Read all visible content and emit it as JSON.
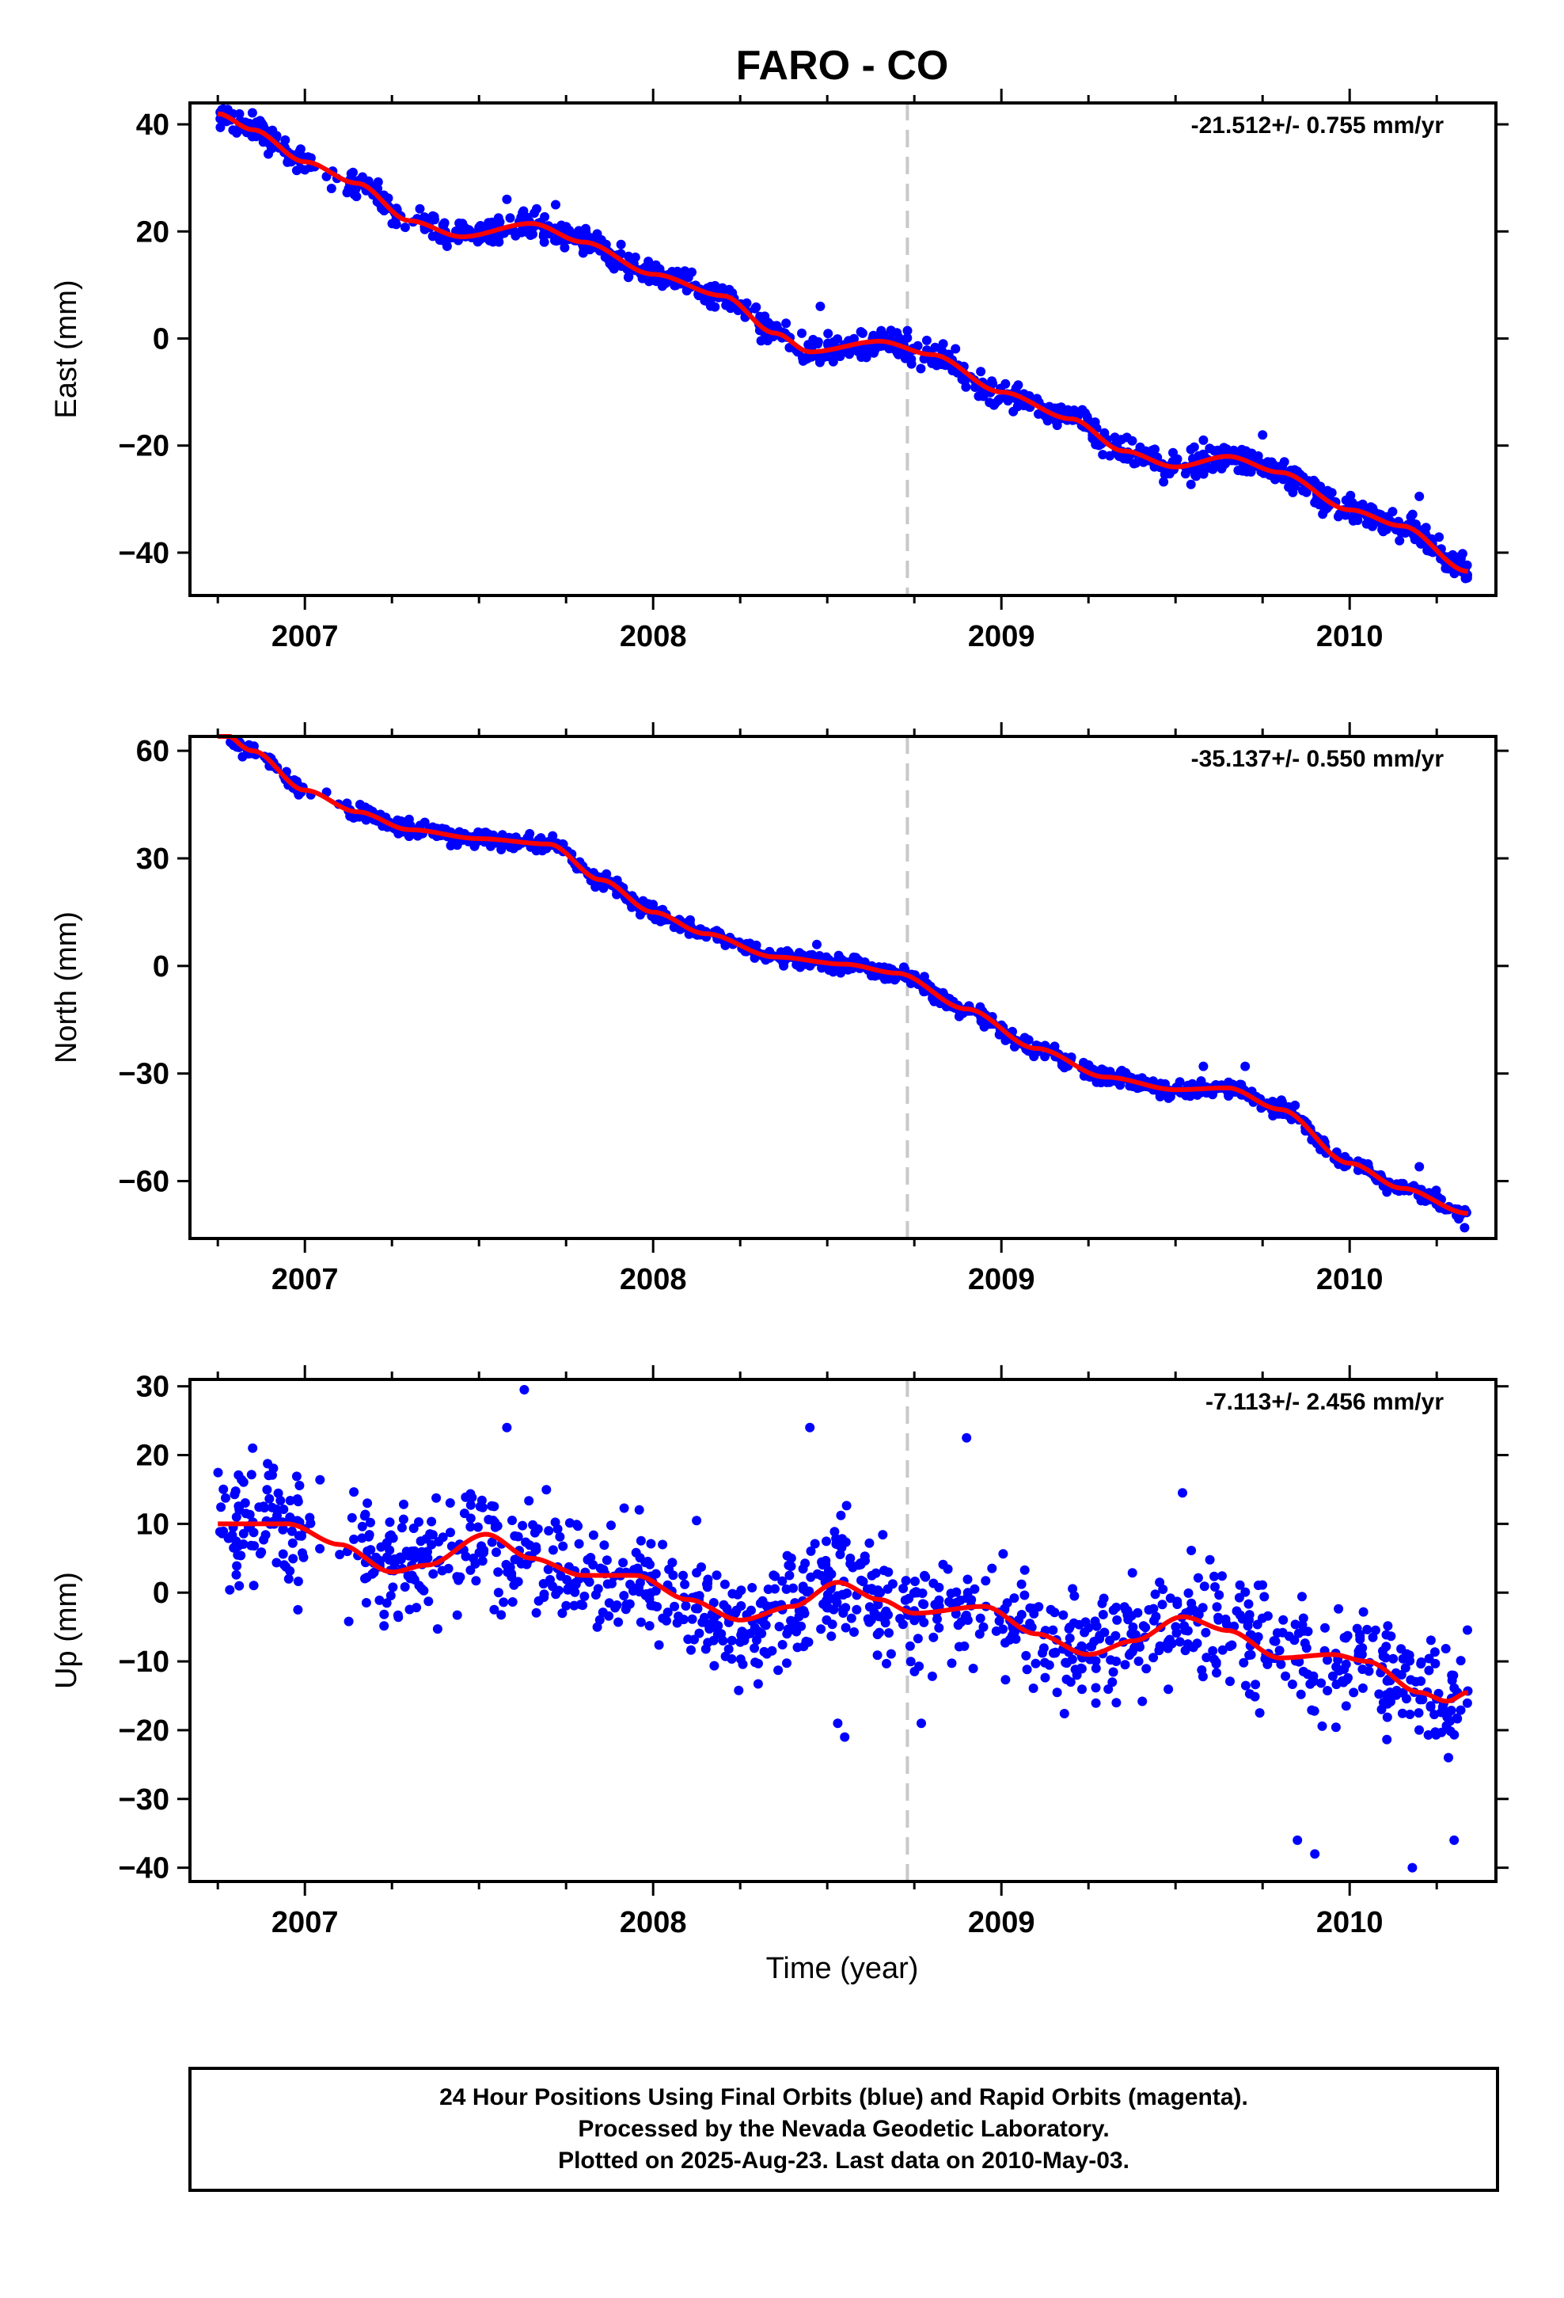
{
  "title": "FARO - CO",
  "xlabel": "Time (year)",
  "footer": {
    "line1": "24 Hour Positions Using Final Orbits (blue) and Rapid Orbits (magenta).",
    "line2": "Processed by the Nevada Geodetic Laboratory.",
    "line3": "Plotted on 2025-Aug-23. Last data on 2010-May-03."
  },
  "colors": {
    "points": "#0000ff",
    "fit": "#ff0000",
    "event_line": "#c8c8c8",
    "axes": "#000000"
  },
  "chart_data": [
    {
      "type": "scatter",
      "component": "east",
      "ylabel": "East (mm)",
      "rate_text": "-21.512+/- 0.755 mm/yr",
      "xlim": [
        2006.67,
        2010.42
      ],
      "ylim": [
        -48,
        44
      ],
      "x_ticks": [
        2007,
        2008,
        2009,
        2010
      ],
      "y_ticks": [
        -40,
        -20,
        0,
        20,
        40
      ],
      "y_tick_labels": [
        "−40",
        "−20",
        "0",
        "20",
        "40"
      ],
      "event_line_x": 2008.73,
      "data_range": [
        2006.75,
        2010.34
      ],
      "fit_knots": [
        [
          2006.75,
          42
        ],
        [
          2006.85,
          39
        ],
        [
          2007.0,
          33
        ],
        [
          2007.15,
          29
        ],
        [
          2007.3,
          22
        ],
        [
          2007.45,
          19
        ],
        [
          2007.65,
          21.5
        ],
        [
          2007.8,
          18
        ],
        [
          2008.0,
          12
        ],
        [
          2008.2,
          8
        ],
        [
          2008.35,
          1
        ],
        [
          2008.45,
          -2.5
        ],
        [
          2008.65,
          -0.5
        ],
        [
          2008.8,
          -3
        ],
        [
          2009.0,
          -10
        ],
        [
          2009.2,
          -15
        ],
        [
          2009.35,
          -21
        ],
        [
          2009.5,
          -24
        ],
        [
          2009.65,
          -22
        ],
        [
          2009.8,
          -25
        ],
        [
          2010.0,
          -32
        ],
        [
          2010.15,
          -35
        ],
        [
          2010.34,
          -43.5
        ]
      ],
      "noise_mm": 1.8,
      "outliers": [
        {
          "x": 2007.58,
          "y": 26
        },
        {
          "x": 2007.72,
          "y": 25
        },
        {
          "x": 2008.48,
          "y": 6
        },
        {
          "x": 2009.58,
          "y": -19
        },
        {
          "x": 2009.75,
          "y": -18
        },
        {
          "x": 2010.2,
          "y": -29.5
        }
      ]
    },
    {
      "type": "scatter",
      "component": "north",
      "ylabel": "North (mm)",
      "rate_text": "-35.137+/- 0.550 mm/yr",
      "xlim": [
        2006.67,
        2010.42
      ],
      "ylim": [
        -76,
        64
      ],
      "x_ticks": [
        2007,
        2008,
        2009,
        2010
      ],
      "y_ticks": [
        -60,
        -30,
        0,
        30,
        60
      ],
      "y_tick_labels": [
        "−60",
        "−30",
        "0",
        "30",
        "60"
      ],
      "event_line_x": 2008.73,
      "data_range": [
        2006.75,
        2010.34
      ],
      "fit_knots": [
        [
          2006.75,
          66
        ],
        [
          2006.85,
          60
        ],
        [
          2007.0,
          49
        ],
        [
          2007.15,
          43
        ],
        [
          2007.3,
          38
        ],
        [
          2007.5,
          35.5
        ],
        [
          2007.7,
          34
        ],
        [
          2007.85,
          24
        ],
        [
          2008.0,
          15
        ],
        [
          2008.15,
          9
        ],
        [
          2008.35,
          2.5
        ],
        [
          2008.55,
          0.5
        ],
        [
          2008.7,
          -2
        ],
        [
          2008.9,
          -12
        ],
        [
          2009.1,
          -23
        ],
        [
          2009.3,
          -31
        ],
        [
          2009.5,
          -34.5
        ],
        [
          2009.65,
          -34
        ],
        [
          2009.8,
          -40
        ],
        [
          2010.0,
          -55
        ],
        [
          2010.15,
          -62
        ],
        [
          2010.34,
          -69
        ]
      ],
      "noise_mm": 1.5,
      "outliers": [
        {
          "x": 2009.58,
          "y": -28
        },
        {
          "x": 2009.7,
          "y": -28
        },
        {
          "x": 2010.2,
          "y": -56
        },
        {
          "x": 2010.33,
          "y": -73
        },
        {
          "x": 2008.47,
          "y": 6
        }
      ]
    },
    {
      "type": "scatter",
      "component": "up",
      "ylabel": "Up (mm)",
      "rate_text": "-7.113+/- 2.456 mm/yr",
      "xlim": [
        2006.67,
        2010.42
      ],
      "ylim": [
        -42,
        31
      ],
      "x_ticks": [
        2007,
        2008,
        2009,
        2010
      ],
      "y_ticks": [
        -40,
        -30,
        -20,
        -10,
        0,
        10,
        20,
        30
      ],
      "y_tick_labels": [
        "−40",
        "−30",
        "−20",
        "−10",
        "0",
        "10",
        "20",
        "30"
      ],
      "event_line_x": 2008.73,
      "data_range": [
        2006.75,
        2010.34
      ],
      "fit_knots": [
        [
          2006.75,
          10
        ],
        [
          2006.95,
          10
        ],
        [
          2007.1,
          7
        ],
        [
          2007.25,
          3
        ],
        [
          2007.35,
          4
        ],
        [
          2007.52,
          8.5
        ],
        [
          2007.65,
          5
        ],
        [
          2007.8,
          2.5
        ],
        [
          2007.95,
          2.5
        ],
        [
          2008.1,
          -1
        ],
        [
          2008.25,
          -4
        ],
        [
          2008.4,
          -2
        ],
        [
          2008.53,
          1.5
        ],
        [
          2008.65,
          -1
        ],
        [
          2008.75,
          -3
        ],
        [
          2008.95,
          -2
        ],
        [
          2009.1,
          -6
        ],
        [
          2009.25,
          -9
        ],
        [
          2009.38,
          -7
        ],
        [
          2009.52,
          -3.5
        ],
        [
          2009.65,
          -5.5
        ],
        [
          2009.8,
          -9.5
        ],
        [
          2009.95,
          -9
        ],
        [
          2010.05,
          -10
        ],
        [
          2010.2,
          -14.5
        ],
        [
          2010.28,
          -15.8
        ],
        [
          2010.34,
          -14.5
        ]
      ],
      "noise_mm": 6,
      "outliers": [
        {
          "x": 2007.63,
          "y": 29.5
        },
        {
          "x": 2007.58,
          "y": 24
        },
        {
          "x": 2008.45,
          "y": 24
        },
        {
          "x": 2008.9,
          "y": 22.5
        },
        {
          "x": 2006.85,
          "y": 21
        },
        {
          "x": 2009.52,
          "y": 14.5
        },
        {
          "x": 2008.55,
          "y": -21
        },
        {
          "x": 2008.53,
          "y": -19
        },
        {
          "x": 2008.77,
          "y": -19
        },
        {
          "x": 2009.85,
          "y": -36
        },
        {
          "x": 2009.9,
          "y": -38
        },
        {
          "x": 2010.18,
          "y": -40
        },
        {
          "x": 2010.3,
          "y": -36
        },
        {
          "x": 2006.98,
          "y": -2.5
        },
        {
          "x": 2009.16,
          "y": -14.5
        },
        {
          "x": 2009.33,
          "y": -16
        }
      ]
    }
  ]
}
